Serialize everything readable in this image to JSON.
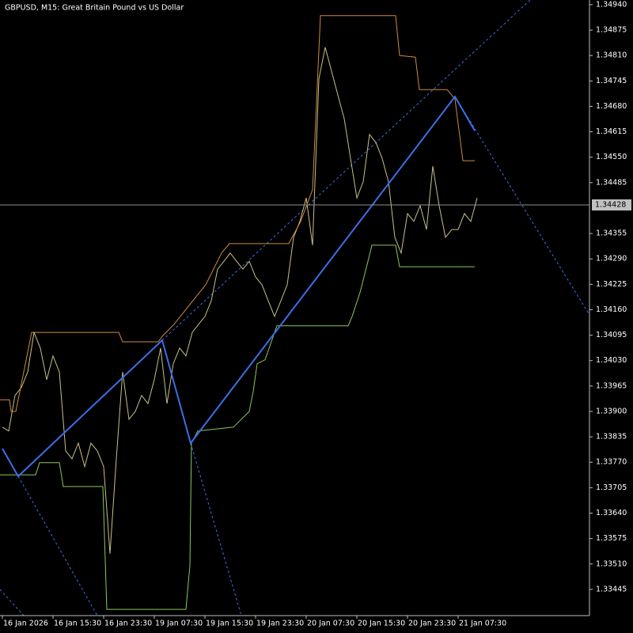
{
  "chart_data": {
    "type": "line",
    "title": "GBPUSD, M15:  Great Britain Pound vs US Dollar",
    "grid": false,
    "xlim": [
      0,
      372.5
    ],
    "ylim": [
      1.33378,
      1.34952
    ],
    "xticks": [
      {
        "value": 1.5,
        "label": "16 Jan 2026"
      },
      {
        "value": 33.5,
        "label": "16 Jan 15:30"
      },
      {
        "value": 65.5,
        "label": "16 Jan 23:30"
      },
      {
        "value": 97.5,
        "label": "19 Jan 07:30"
      },
      {
        "value": 129.5,
        "label": "19 Jan 15:30"
      },
      {
        "value": 161.5,
        "label": "19 Jan 23:30"
      },
      {
        "value": 193.5,
        "label": "20 Jan 07:30"
      },
      {
        "value": 225.5,
        "label": "20 Jan 15:30"
      },
      {
        "value": 257.5,
        "label": "20 Jan 23:30"
      },
      {
        "value": 289.5,
        "label": "21 Jan 07:30"
      }
    ],
    "yticks": [
      {
        "value": 1.3494,
        "label": "1.34940"
      },
      1.34875,
      {
        "value": 1.3481,
        "label": "1.34810"
      },
      1.34745,
      {
        "value": 1.3468,
        "label": "1.34680"
      },
      1.34615,
      {
        "value": 1.3455,
        "label": "1.34550"
      },
      1.34485,
      1.34355,
      {
        "value": 1.3429,
        "label": "1.34290"
      },
      1.34225,
      {
        "value": 1.3416,
        "label": "1.34160"
      },
      1.34095,
      {
        "value": 1.3403,
        "label": "1.34030"
      },
      1.33965,
      {
        "value": 1.339,
        "label": "1.33900"
      },
      1.33835,
      {
        "value": 1.3377,
        "label": "1.33770"
      },
      1.33705,
      {
        "value": 1.3364,
        "label": "1.33640"
      },
      1.33575,
      {
        "value": 1.3351,
        "label": "1.33510"
      },
      1.33445
    ],
    "current_price": 1.34428,
    "series": [
      {
        "color": "#c8c088",
        "x": [
          1.5,
          5.5,
          9.5,
          13.5,
          17.5,
          21.5,
          25.5,
          29.5,
          33.5,
          37.5,
          41.5,
          45.5,
          49.5,
          53.5,
          57.5,
          61.5,
          65.5,
          69.5,
          73.5,
          77.5,
          81.5,
          85.5,
          89.5,
          93.5,
          97.5,
          101.5,
          105.5,
          109.5,
          113.5,
          117.5,
          121.5,
          125.5,
          129.5,
          133.5,
          137.5,
          141.5,
          145.5,
          149.5,
          153.5,
          157.5,
          161.5,
          165.5,
          169.5,
          173.5,
          177.5,
          181.5,
          185.5,
          189.5,
          193.5,
          197.5,
          201.5,
          205.5,
          209.5,
          213.5,
          217.5,
          221.5,
          225.5,
          229.5,
          233.5,
          237.5,
          241.5,
          245.5,
          249.5,
          253.5,
          257.5,
          261.5,
          265.5,
          269.5,
          273.5,
          277.5,
          281.5,
          285.5,
          289.5,
          293.5,
          297.5,
          301.5
        ],
        "values": [
          1.3386,
          1.3385,
          1.33941,
          1.33961,
          1.34001,
          1.34102,
          1.34062,
          1.33981,
          1.34042,
          1.34001,
          1.33799,
          1.33779,
          1.33819,
          1.33759,
          1.33819,
          1.33799,
          1.33759,
          1.33536,
          1.33779,
          1.34001,
          1.3388,
          1.339,
          1.33941,
          1.3392,
          1.33981,
          1.34062,
          1.3392,
          1.34022,
          1.34062,
          1.34042,
          1.34102,
          1.34123,
          1.34143,
          1.34183,
          1.34264,
          1.34284,
          1.34305,
          1.34284,
          1.34264,
          1.34284,
          1.34244,
          1.34224,
          1.34183,
          1.34143,
          1.34183,
          1.34224,
          1.34345,
          1.34386,
          1.34446,
          1.34325,
          1.3475,
          1.34831,
          1.3477,
          1.34709,
          1.34649,
          1.34547,
          1.34446,
          1.34487,
          1.34608,
          1.34588,
          1.34547,
          1.34487,
          1.34345,
          1.34305,
          1.34406,
          1.34386,
          1.34426,
          1.34365,
          1.34527,
          1.34426,
          1.34345,
          1.34365,
          1.34365,
          1.34406,
          1.34386,
          1.34446
        ]
      },
      {
        "color": "#d08a3c",
        "x": [
          0,
          6,
          7,
          10,
          20,
          75,
          77.5,
          100,
          102.5,
          110,
          130,
          140,
          145,
          182.5,
          190,
          197.5,
          202.5,
          250,
          252.5,
          262.5,
          265,
          282.5,
          287.5,
          292.5,
          300
        ],
        "values": [
          1.3393,
          1.3393,
          1.339,
          1.339,
          1.34102,
          1.34102,
          1.34078,
          1.34078,
          1.34092,
          1.34123,
          1.34224,
          1.34305,
          1.34329,
          1.34329,
          1.34386,
          1.34467,
          1.34912,
          1.34912,
          1.3481,
          1.34806,
          1.34723,
          1.34723,
          1.34699,
          1.34541,
          1.34541
        ]
      },
      {
        "color": "#8cc85a",
        "x": [
          0,
          22.5,
          25,
          37.5,
          40,
          65,
          67.5,
          117.5,
          120,
          121,
          125,
          147.5,
          157.5,
          160,
          162.5,
          167.5,
          175,
          220,
          222.5,
          227.5,
          232.5,
          235,
          250,
          252.5,
          300
        ],
        "values": [
          1.33738,
          1.33738,
          1.33769,
          1.33769,
          1.33708,
          1.33708,
          1.33394,
          1.33394,
          1.33506,
          1.33819,
          1.3385,
          1.3386,
          1.339,
          1.33951,
          1.34022,
          1.34032,
          1.34119,
          1.34119,
          1.34143,
          1.34204,
          1.34284,
          1.34325,
          1.34325,
          1.3427,
          1.3427
        ]
      },
      {
        "color": "#3c6ee6",
        "x": [
          1.5,
          11.5,
          102.5,
          120.5,
          287.5,
          300
        ],
        "values": [
          1.33805,
          1.33734,
          1.34082,
          1.33819,
          1.34705,
          1.34618
        ]
      }
    ]
  }
}
